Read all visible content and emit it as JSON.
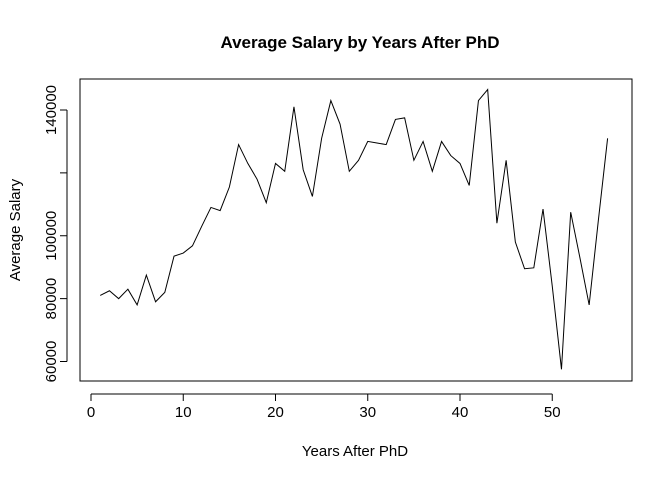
{
  "chart_data": {
    "type": "line",
    "title": "Average Salary by Years After PhD",
    "xlabel": "Years After PhD",
    "ylabel": "Average Salary",
    "xlim": [
      0,
      57
    ],
    "ylim": [
      55000,
      150000
    ],
    "x_ticks": [
      0,
      10,
      20,
      30,
      40,
      50
    ],
    "y_ticks": [
      60000,
      80000,
      100000,
      120000,
      140000
    ],
    "y_tick_labels": [
      "60000",
      "80000",
      "100000",
      "",
      "140000"
    ],
    "grid": false,
    "legend": "none",
    "line_color": "#000000",
    "series": [
      {
        "x": [
          1,
          2,
          3,
          4,
          5,
          6,
          7,
          8,
          9,
          10,
          11,
          12,
          13,
          14,
          15,
          16,
          17,
          18,
          19,
          20,
          21,
          22,
          23,
          24,
          25,
          26,
          27,
          28,
          29,
          30,
          31,
          32,
          33,
          34,
          35,
          36,
          37,
          38,
          39,
          40,
          41,
          42,
          43,
          44,
          45,
          46,
          47,
          48,
          49,
          50,
          51,
          52,
          53,
          54,
          55,
          56
        ],
        "y": [
          81000,
          82500,
          80000,
          83000,
          78000,
          87500,
          79000,
          82000,
          93500,
          94500,
          96800,
          103000,
          109000,
          108000,
          115500,
          129000,
          123000,
          118000,
          110500,
          123000,
          120500,
          141000,
          121000,
          112500,
          131000,
          143000,
          135500,
          120500,
          124000,
          130000,
          129500,
          129000,
          137000,
          137500,
          124000,
          130000,
          120500,
          130000,
          125500,
          123000,
          116000,
          143000,
          146500,
          104000,
          124000,
          98000,
          89500,
          89800,
          108500,
          84000,
          57500,
          107500,
          93000,
          78000,
          105000,
          131000
        ]
      }
    ]
  }
}
